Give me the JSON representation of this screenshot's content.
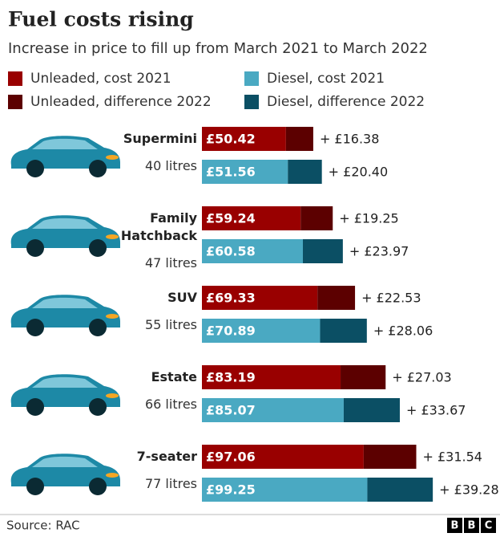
{
  "chart_data": {
    "type": "stacked-bar-horizontal",
    "title": "Fuel costs rising",
    "subtitle": "Increase in price to fill up from March 2021 to March 2022",
    "categories": [
      "Supermini",
      "Family Hatchback",
      "SUV",
      "Estate",
      "7-seater"
    ],
    "sublabels": [
      "40 litres",
      "47 litres",
      "55 litres",
      "66 litres",
      "77 litres"
    ],
    "series": [
      {
        "name": "Unleaded, cost 2021",
        "color": "#990000",
        "values": [
          50.42,
          59.24,
          69.33,
          83.19,
          97.06
        ],
        "value_labels": [
          "£50.42",
          "£59.24",
          "£69.33",
          "£83.19",
          "£97.06"
        ]
      },
      {
        "name": "Unleaded, difference 2022",
        "color": "#5c0000",
        "values": [
          16.38,
          19.25,
          22.53,
          27.03,
          31.54
        ],
        "value_labels": [
          "+ £16.38",
          "+ £19.25",
          "+ £22.53",
          "+ £27.03",
          "+ £31.54"
        ]
      },
      {
        "name": "Diesel, cost 2021",
        "color": "#4aa9c2",
        "values": [
          51.56,
          60.58,
          70.89,
          85.07,
          99.25
        ],
        "value_labels": [
          "£51.56",
          "£60.58",
          "£70.89",
          "£85.07",
          "£99.25"
        ]
      },
      {
        "name": "Diesel, difference 2022",
        "color": "#0b4f64",
        "values": [
          20.4,
          23.97,
          28.06,
          33.67,
          39.28
        ],
        "value_labels": [
          "+ £20.40",
          "+ £23.97",
          "+ £28.06",
          "+ £33.67",
          "+ £39.28"
        ]
      }
    ],
    "source": "Source: RAC",
    "logo": [
      "B",
      "B",
      "C"
    ]
  }
}
